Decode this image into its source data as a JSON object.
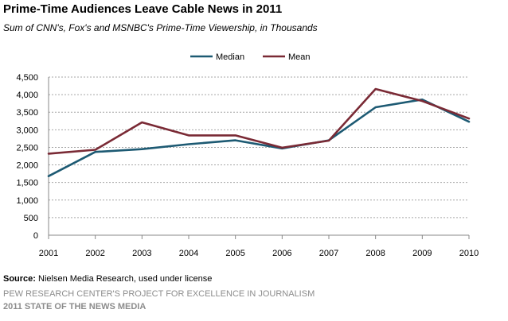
{
  "header": {
    "title": "Prime-Time Audiences Leave Cable News in 2011",
    "subtitle": "Sum of CNN's, Fox's and MSNBC's Prime-Time Viewership, in Thousands"
  },
  "footer": {
    "source_label": "Source:",
    "source_text": " Nielsen Media Research, used under license",
    "credit_line1": "PEW RESEARCH CENTER'S PROJECT FOR EXCELLENCE IN JOURNALISM",
    "credit_line2": "2011 STATE OF THE NEWS MEDIA"
  },
  "chart_data": {
    "type": "line",
    "title": "Prime-Time Audiences Leave Cable News in 2011",
    "subtitle": "Sum of CNN's, Fox's and MSNBC's Prime-Time Viewership, in Thousands",
    "xlabel": "",
    "ylabel": "",
    "x": [
      "2001",
      "2002",
      "2003",
      "2004",
      "2005",
      "2006",
      "2007",
      "2008",
      "2009",
      "2010"
    ],
    "ylim": [
      0,
      4500
    ],
    "yticks": [
      0,
      500,
      1000,
      1500,
      2000,
      2500,
      3000,
      3500,
      4000,
      4500
    ],
    "ytick_labels": [
      "0",
      "500",
      "1,000",
      "1,500",
      "2,000",
      "2,500",
      "3,000",
      "3,500",
      "4,000",
      "4,500"
    ],
    "grid": "horizontal-dashed",
    "legend_position": "top-center",
    "series": [
      {
        "name": "Median",
        "color": "#1d5a73",
        "values": [
          1680,
          2370,
          2450,
          2590,
          2700,
          2470,
          2700,
          3640,
          3860,
          3230
        ]
      },
      {
        "name": "Mean",
        "color": "#7a2a35",
        "values": [
          2320,
          2430,
          3210,
          2840,
          2840,
          2490,
          2690,
          4160,
          3820,
          3320
        ]
      }
    ]
  }
}
